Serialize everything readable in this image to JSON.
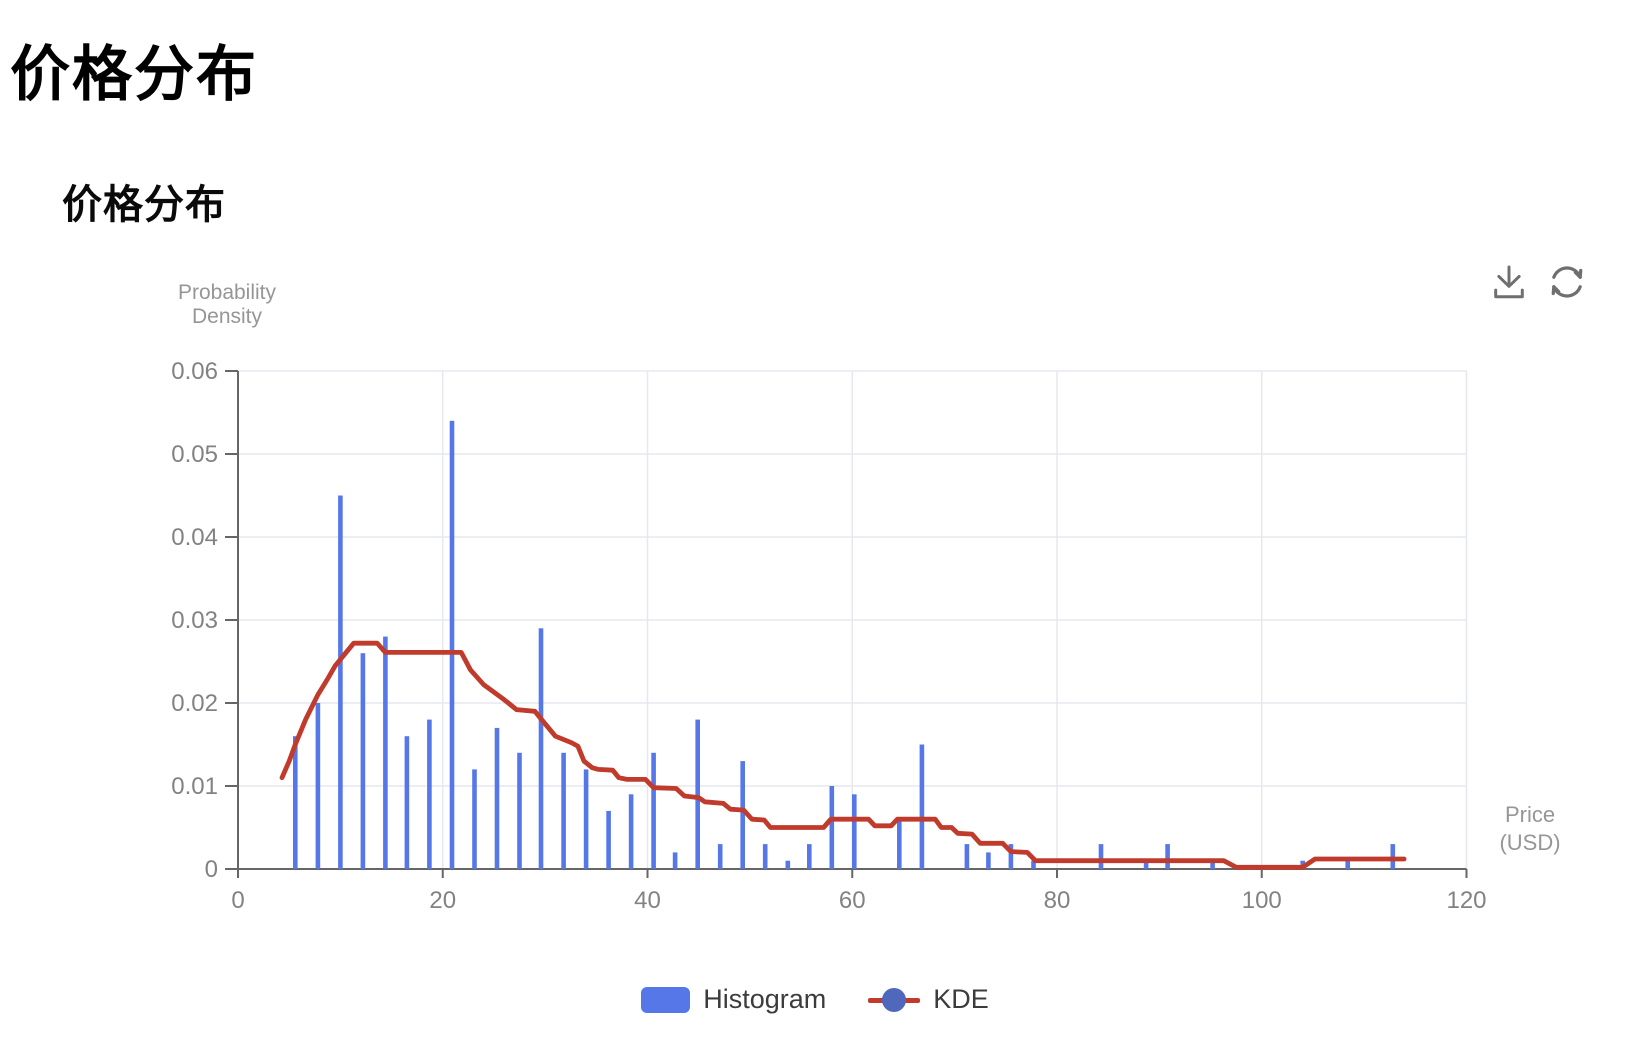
{
  "page": {
    "title": "价格分布",
    "subtitle": "价格分布"
  },
  "toolbar": {
    "icons": [
      {
        "name": "download-icon"
      },
      {
        "name": "refresh-icon"
      }
    ]
  },
  "colors": {
    "axis": "#666666",
    "tick_text": "#828282",
    "grid": "#E6E8EF",
    "axis_name": "#969696",
    "legend_text": "#3C3C3C",
    "icon": "#6F6F6F"
  },
  "chart_data": {
    "type": "bar",
    "title": "价格分布",
    "xlabel": "Price\n(USD)",
    "ylabel": "Probability\nDensity",
    "xlim": [
      0,
      120
    ],
    "ylim": [
      0,
      0.06
    ],
    "x_ticks": [
      0,
      20,
      40,
      60,
      80,
      100,
      120
    ],
    "x_tick_labels": [
      "0",
      "20",
      "40",
      "60",
      "80",
      "100",
      "120"
    ],
    "y_ticks": [
      0,
      0.01,
      0.02,
      0.03,
      0.04,
      0.05,
      0.06
    ],
    "y_tick_labels": [
      "0",
      "0.01",
      "0.02",
      "0.03",
      "0.04",
      "0.05",
      "0.06"
    ],
    "grid": true,
    "legend_position": "bottom",
    "series": [
      {
        "name": "Histogram",
        "type": "bar",
        "color": "#5577E8",
        "points": [
          [
            5.6,
            0.016
          ],
          [
            7.8,
            0.02
          ],
          [
            10.0,
            0.045
          ],
          [
            12.2,
            0.026
          ],
          [
            14.4,
            0.028
          ],
          [
            16.5,
            0.016
          ],
          [
            18.7,
            0.018
          ],
          [
            20.9,
            0.054
          ],
          [
            23.1,
            0.012
          ],
          [
            25.3,
            0.017
          ],
          [
            27.5,
            0.014
          ],
          [
            29.6,
            0.029
          ],
          [
            31.8,
            0.014
          ],
          [
            34.0,
            0.012
          ],
          [
            36.2,
            0.007
          ],
          [
            38.4,
            0.009
          ],
          [
            40.6,
            0.014
          ],
          [
            42.7,
            0.002
          ],
          [
            44.9,
            0.018
          ],
          [
            47.1,
            0.003
          ],
          [
            49.3,
            0.013
          ],
          [
            51.5,
            0.003
          ],
          [
            53.7,
            0.001
          ],
          [
            55.8,
            0.003
          ],
          [
            58.0,
            0.01
          ],
          [
            60.2,
            0.009
          ],
          [
            64.6,
            0.006
          ],
          [
            66.8,
            0.015
          ],
          [
            71.2,
            0.003
          ],
          [
            73.3,
            0.002
          ],
          [
            75.5,
            0.003
          ],
          [
            77.7,
            0.001
          ],
          [
            84.3,
            0.003
          ],
          [
            88.7,
            0.001
          ],
          [
            90.8,
            0.003
          ],
          [
            95.2,
            0.001
          ],
          [
            104.0,
            0.001
          ],
          [
            108.4,
            0.001
          ],
          [
            112.8,
            0.003
          ]
        ]
      },
      {
        "name": "KDE",
        "type": "line",
        "color": "#C13B2D",
        "marker_color": "#5068BC",
        "points": [
          [
            4.3,
            0.011
          ],
          [
            5.0,
            0.013
          ],
          [
            5.6,
            0.015
          ],
          [
            6.6,
            0.018
          ],
          [
            7.8,
            0.021
          ],
          [
            8.8,
            0.023
          ],
          [
            9.5,
            0.0245
          ],
          [
            10.5,
            0.026
          ],
          [
            11.3,
            0.0272
          ],
          [
            13.6,
            0.0272
          ],
          [
            14.4,
            0.0261
          ],
          [
            21.8,
            0.0261
          ],
          [
            22.7,
            0.024
          ],
          [
            24.0,
            0.0222
          ],
          [
            26.0,
            0.0204
          ],
          [
            27.2,
            0.0192
          ],
          [
            29.0,
            0.019
          ],
          [
            30.0,
            0.0175
          ],
          [
            31.0,
            0.016
          ],
          [
            32.6,
            0.0152
          ],
          [
            33.2,
            0.0148
          ],
          [
            33.8,
            0.013
          ],
          [
            34.6,
            0.0122
          ],
          [
            35.2,
            0.012
          ],
          [
            36.6,
            0.0119
          ],
          [
            37.2,
            0.011
          ],
          [
            38.0,
            0.0108
          ],
          [
            39.8,
            0.0108
          ],
          [
            40.6,
            0.0098
          ],
          [
            42.8,
            0.0097
          ],
          [
            43.6,
            0.0088
          ],
          [
            45.0,
            0.0086
          ],
          [
            45.6,
            0.0081
          ],
          [
            47.4,
            0.0079
          ],
          [
            48.1,
            0.0072
          ],
          [
            49.4,
            0.0071
          ],
          [
            50.2,
            0.006
          ],
          [
            51.4,
            0.0059
          ],
          [
            52.0,
            0.005
          ],
          [
            57.2,
            0.005
          ],
          [
            57.9,
            0.006
          ],
          [
            61.6,
            0.006
          ],
          [
            62.2,
            0.0052
          ],
          [
            63.8,
            0.0052
          ],
          [
            64.4,
            0.006
          ],
          [
            68.1,
            0.006
          ],
          [
            68.7,
            0.005
          ],
          [
            69.7,
            0.005
          ],
          [
            70.3,
            0.0043
          ],
          [
            71.7,
            0.0042
          ],
          [
            72.5,
            0.0031
          ],
          [
            74.7,
            0.0031
          ],
          [
            75.5,
            0.0021
          ],
          [
            77.1,
            0.002
          ],
          [
            77.9,
            0.001
          ],
          [
            96.3,
            0.001
          ],
          [
            97.5,
            0.0002
          ],
          [
            104.0,
            0.0002
          ],
          [
            105.2,
            0.0012
          ],
          [
            113.9,
            0.0012
          ]
        ]
      }
    ]
  }
}
